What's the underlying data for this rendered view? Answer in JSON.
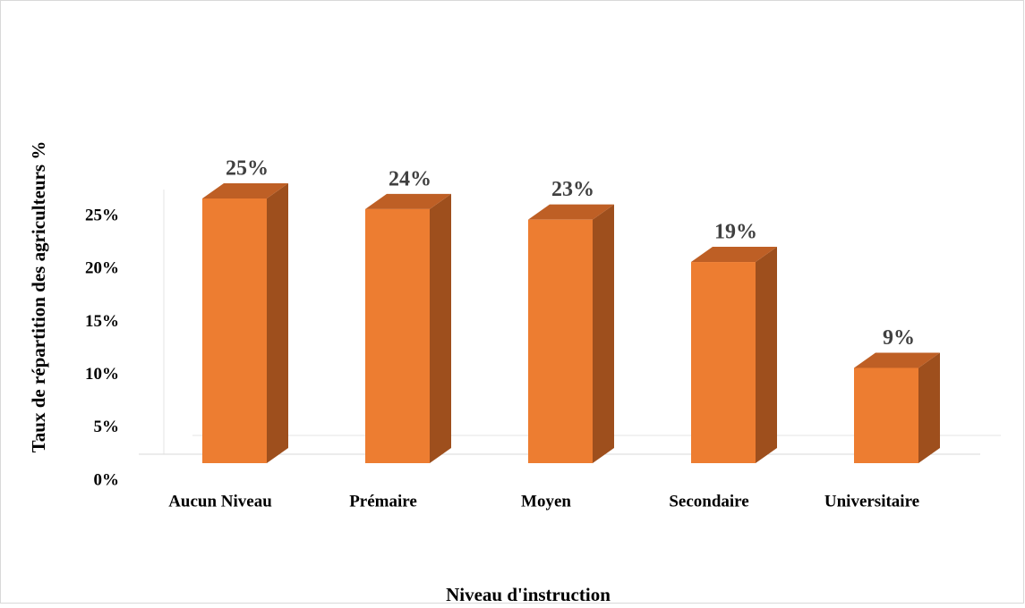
{
  "chart_data": {
    "type": "bar3d",
    "x_label": "Niveau d'instruction",
    "y_label": "Taux de répartition des agriculteurs %",
    "categories": [
      "Aucun Niveau",
      "Prémaire",
      "Moyen",
      "Secondaire",
      "Universitaire"
    ],
    "values": [
      25,
      24,
      23,
      19,
      9
    ],
    "value_labels": [
      "25%",
      "24%",
      "23%",
      "19%",
      "9%"
    ],
    "color": "#ED7D31",
    "ylim": [
      0,
      25
    ],
    "yticks": [
      {
        "value": 0,
        "label": "0%"
      },
      {
        "value": 5,
        "label": "5%"
      },
      {
        "value": 10,
        "label": "10%"
      },
      {
        "value": 15,
        "label": "15%"
      },
      {
        "value": 20,
        "label": "20%"
      },
      {
        "value": 25,
        "label": "25%"
      }
    ]
  }
}
